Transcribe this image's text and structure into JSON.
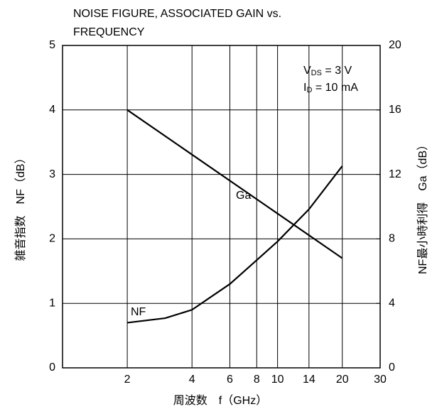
{
  "chart_data": {
    "type": "line",
    "title": [
      "NOISE FIGURE, ASSOCIATED GAIN vs.",
      "FREQUENCY"
    ],
    "xlabel": "周波数　f（GHz）",
    "ylabel": "雑音指数　NF（dB）",
    "y2label": "NF最小時利得　Ga（dB）",
    "xscale": "log",
    "xlim": [
      1,
      30
    ],
    "xticks": [
      2,
      4,
      6,
      8,
      10,
      14,
      20,
      30
    ],
    "ylim": [
      0,
      5
    ],
    "yticks": [
      0,
      1,
      2,
      3,
      4,
      5
    ],
    "y2lim": [
      0,
      20
    ],
    "y2ticks": [
      0,
      4,
      8,
      12,
      16,
      20
    ],
    "grid": true,
    "annotations": [
      [
        {
          "text": "V"
        },
        {
          "text": "DS",
          "sub": true
        },
        {
          "text": " = 3 V"
        }
      ],
      [
        {
          "text": "I"
        },
        {
          "text": "D",
          "sub": true
        },
        {
          "text": " = 10 mA"
        }
      ]
    ],
    "series": [
      {
        "name": "NF",
        "color": "#000000",
        "axis": "y",
        "x": [
          2,
          3,
          4,
          6,
          8,
          10,
          14,
          20
        ],
        "values": [
          0.7,
          0.77,
          0.9,
          1.3,
          1.67,
          1.96,
          2.46,
          3.13
        ]
      },
      {
        "name": "Ga",
        "color": "#000000",
        "axis": "y2",
        "x": [
          2,
          20
        ],
        "values": [
          16,
          6.8
        ]
      }
    ]
  }
}
